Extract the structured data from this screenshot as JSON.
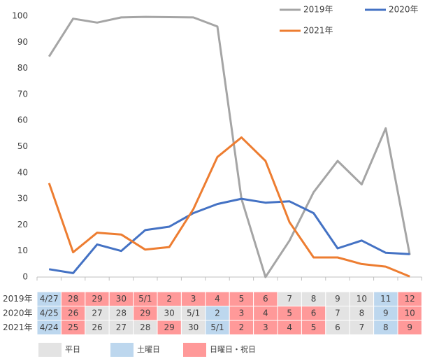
{
  "chart_data": {
    "type": "line",
    "series": [
      {
        "name": "2019年",
        "color": "#a5a5a5",
        "values": [
          84.5,
          99,
          97.5,
          99.5,
          99.7,
          99.6,
          99.5,
          96,
          30,
          0,
          14,
          32.5,
          44.5,
          35.5,
          57,
          8.5
        ]
      },
      {
        "name": "2020年",
        "color": "#4472c4",
        "values": [
          3,
          1.5,
          12.5,
          10,
          18,
          19.3,
          24.5,
          28,
          30,
          28.5,
          29,
          24.5,
          11,
          14,
          9.3,
          8.8
        ]
      },
      {
        "name": "2021年",
        "color": "#ed7d31",
        "values": [
          36,
          9.5,
          17,
          16.3,
          10.5,
          11.5,
          26,
          46,
          53.5,
          44.5,
          21,
          7.5,
          7.5,
          5,
          4,
          0.2
        ]
      }
    ],
    "ylim": [
      0,
      100
    ],
    "yticks": [
      0,
      10,
      20,
      30,
      40,
      50,
      60,
      70,
      80,
      90,
      100
    ],
    "grid": false
  },
  "table": {
    "rows": [
      {
        "label": "2019年",
        "cells": [
          "4/27",
          "28",
          "29",
          "30",
          "5/1",
          "2",
          "3",
          "4",
          "5",
          "6",
          "7",
          "8",
          "9",
          "10",
          "11",
          "12"
        ],
        "colors": [
          "#bdd7ee",
          "#ff9999",
          "#ff9999",
          "#ff9999",
          "#ff9999",
          "#ff9999",
          "#ff9999",
          "#ff9999",
          "#ff9999",
          "#ff9999",
          "#e3e3e3",
          "#e3e3e3",
          "#e3e3e3",
          "#e3e3e3",
          "#bdd7ee",
          "#ff9999"
        ]
      },
      {
        "label": "2020年",
        "cells": [
          "4/25",
          "26",
          "27",
          "28",
          "29",
          "30",
          "5/1",
          "2",
          "3",
          "4",
          "5",
          "6",
          "7",
          "8",
          "9",
          "10"
        ],
        "colors": [
          "#bdd7ee",
          "#ff9999",
          "#e3e3e3",
          "#e3e3e3",
          "#ff9999",
          "#e3e3e3",
          "#e3e3e3",
          "#bdd7ee",
          "#ff9999",
          "#ff9999",
          "#ff9999",
          "#ff9999",
          "#e3e3e3",
          "#e3e3e3",
          "#bdd7ee",
          "#ff9999"
        ]
      },
      {
        "label": "2021年",
        "cells": [
          "4/24",
          "25",
          "26",
          "27",
          "28",
          "29",
          "30",
          "5/1",
          "2",
          "3",
          "4",
          "5",
          "6",
          "7",
          "8",
          "9"
        ],
        "colors": [
          "#bdd7ee",
          "#ff9999",
          "#e3e3e3",
          "#e3e3e3",
          "#e3e3e3",
          "#ff9999",
          "#e3e3e3",
          "#bdd7ee",
          "#ff9999",
          "#ff9999",
          "#ff9999",
          "#ff9999",
          "#e3e3e3",
          "#e3e3e3",
          "#bdd7ee",
          "#ff9999"
        ]
      }
    ],
    "legend": [
      {
        "name": "平日",
        "color": "#e3e3e3"
      },
      {
        "name": "土曜日",
        "color": "#bdd7ee"
      },
      {
        "name": "日曜日・祝日",
        "color": "#ff9999"
      }
    ]
  }
}
